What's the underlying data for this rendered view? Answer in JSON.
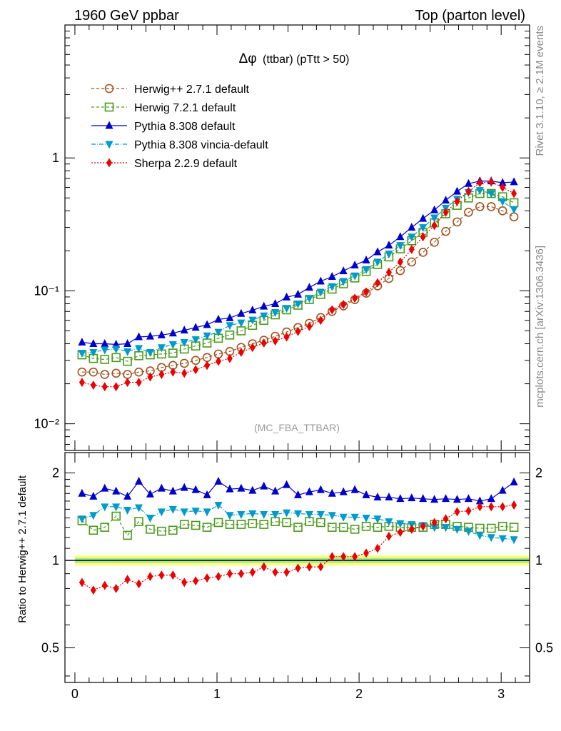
{
  "header": {
    "left": "1960 GeV ppbar",
    "right": "Top (parton level)"
  },
  "side_labels": {
    "top": "Rivet 3.1.10, ≥ 2.1M events",
    "bottom": "mcplots.cern.ch [arXiv:1306.3436]"
  },
  "analysis_tag": "(MC_FBA_TTBAR)",
  "chart_data": [
    {
      "type": "line",
      "panel": "main",
      "title_symbol": "Δφ",
      "title": "(ttbar) (pTtt > 50)",
      "xlabel": "",
      "ylabel": "",
      "yscale": "log",
      "xlim": [
        -0.07,
        3.2
      ],
      "ylim": [
        0.0063,
        10
      ],
      "y_tick_labels": [
        "10⁻²",
        "10⁻¹",
        "1"
      ],
      "x": [
        0.05,
        0.13,
        0.21,
        0.29,
        0.37,
        0.45,
        0.53,
        0.61,
        0.69,
        0.77,
        0.85,
        0.93,
        1.01,
        1.09,
        1.17,
        1.25,
        1.33,
        1.41,
        1.49,
        1.57,
        1.65,
        1.73,
        1.81,
        1.89,
        1.97,
        2.05,
        2.13,
        2.21,
        2.29,
        2.37,
        2.45,
        2.53,
        2.61,
        2.69,
        2.77,
        2.85,
        2.93,
        3.01,
        3.09
      ],
      "legend_position": "top-left",
      "series": [
        {
          "name": "Herwig++ 2.7.1 default",
          "color": "#a0521d",
          "marker": "open-circle",
          "dash": "4,3",
          "values": [
            0.0245,
            0.0245,
            0.0235,
            0.024,
            0.0235,
            0.0245,
            0.025,
            0.0265,
            0.0275,
            0.0285,
            0.03,
            0.0315,
            0.0335,
            0.035,
            0.0375,
            0.04,
            0.0425,
            0.0455,
            0.049,
            0.053,
            0.057,
            0.063,
            0.07,
            0.077,
            0.086,
            0.096,
            0.109,
            0.124,
            0.142,
            0.165,
            0.195,
            0.232,
            0.28,
            0.33,
            0.39,
            0.43,
            0.43,
            0.4,
            0.36
          ]
        },
        {
          "name": "Herwig 7.2.1 default",
          "color": "#4a9a1a",
          "marker": "open-square",
          "dash": "4,3",
          "values": [
            0.033,
            0.031,
            0.0305,
            0.0315,
            0.0295,
            0.0325,
            0.033,
            0.0335,
            0.034,
            0.0365,
            0.0385,
            0.0405,
            0.044,
            0.0465,
            0.05,
            0.055,
            0.06,
            0.066,
            0.072,
            0.078,
            0.086,
            0.094,
            0.103,
            0.113,
            0.125,
            0.14,
            0.158,
            0.18,
            0.207,
            0.238,
            0.275,
            0.325,
            0.38,
            0.44,
            0.5,
            0.54,
            0.54,
            0.51,
            0.46
          ]
        },
        {
          "name": "Pythia 8.308 default",
          "color": "#0000cc",
          "marker": "filled-triangle-up",
          "dash": "",
          "values": [
            0.041,
            0.04,
            0.04,
            0.0395,
            0.04,
            0.045,
            0.0455,
            0.0465,
            0.048,
            0.0505,
            0.053,
            0.0555,
            0.061,
            0.0625,
            0.0675,
            0.0715,
            0.0765,
            0.08,
            0.0895,
            0.094,
            0.106,
            0.118,
            0.128,
            0.141,
            0.156,
            0.17,
            0.196,
            0.22,
            0.255,
            0.3,
            0.35,
            0.405,
            0.48,
            0.56,
            0.64,
            0.67,
            0.67,
            0.65,
            0.66
          ]
        },
        {
          "name": "Pythia 8.308 vincia-default",
          "color": "#009acc",
          "marker": "filled-triangle-down",
          "dash": "6,2,1,2",
          "values": [
            0.034,
            0.0345,
            0.036,
            0.0365,
            0.035,
            0.037,
            0.0345,
            0.0375,
            0.0395,
            0.041,
            0.043,
            0.046,
            0.049,
            0.055,
            0.0575,
            0.0605,
            0.065,
            0.069,
            0.074,
            0.08,
            0.088,
            0.098,
            0.108,
            0.118,
            0.13,
            0.145,
            0.165,
            0.19,
            0.22,
            0.255,
            0.3,
            0.355,
            0.42,
            0.49,
            0.55,
            0.57,
            0.54,
            0.47,
            0.41
          ]
        },
        {
          "name": "Sherpa 2.2.9 default",
          "color": "#ee0000",
          "marker": "filled-diamond",
          "dash": "2,2",
          "values": [
            0.0205,
            0.0195,
            0.019,
            0.019,
            0.0205,
            0.0205,
            0.0225,
            0.0235,
            0.0245,
            0.024,
            0.0255,
            0.0275,
            0.0295,
            0.031,
            0.0345,
            0.0375,
            0.0405,
            0.042,
            0.045,
            0.0495,
            0.054,
            0.06,
            0.072,
            0.079,
            0.088,
            0.098,
            0.115,
            0.138,
            0.165,
            0.205,
            0.255,
            0.31,
            0.39,
            0.47,
            0.56,
            0.65,
            0.66,
            0.6,
            0.54
          ]
        }
      ]
    },
    {
      "type": "line",
      "panel": "ratio",
      "ylabel": "Ratio to Herwig++ 2.7.1 default",
      "xlabel": "",
      "xlim": [
        -0.07,
        3.2
      ],
      "ylim": [
        0.38,
        2.35
      ],
      "yscale": "log",
      "x_tick_labels": [
        "0",
        "1",
        "2",
        "3"
      ],
      "y_tick_labels": [
        "0.5",
        "1",
        "2"
      ],
      "reference_band": {
        "low": 0.96,
        "high": 1.04
      },
      "x": [
        0.05,
        0.13,
        0.21,
        0.29,
        0.37,
        0.45,
        0.53,
        0.61,
        0.69,
        0.77,
        0.85,
        0.93,
        1.01,
        1.09,
        1.17,
        1.25,
        1.33,
        1.41,
        1.49,
        1.57,
        1.65,
        1.73,
        1.81,
        1.89,
        1.97,
        2.05,
        2.13,
        2.21,
        2.29,
        2.37,
        2.45,
        2.53,
        2.61,
        2.69,
        2.77,
        2.85,
        2.93,
        3.01,
        3.09
      ],
      "series": [
        {
          "name": "Herwig 7.2.1 default",
          "color": "#4a9a1a",
          "marker": "open-square",
          "dash": "4,3",
          "values": [
            1.37,
            1.27,
            1.3,
            1.42,
            1.22,
            1.36,
            1.28,
            1.26,
            1.27,
            1.33,
            1.32,
            1.3,
            1.35,
            1.33,
            1.33,
            1.34,
            1.33,
            1.36,
            1.35,
            1.3,
            1.36,
            1.35,
            1.3,
            1.3,
            1.28,
            1.31,
            1.3,
            1.31,
            1.3,
            1.3,
            1.3,
            1.33,
            1.33,
            1.31,
            1.3,
            1.29,
            1.29,
            1.31,
            1.3
          ]
        },
        {
          "name": "Pythia 8.308 default",
          "color": "#0000cc",
          "marker": "filled-triangle-up",
          "dash": "",
          "values": [
            1.7,
            1.66,
            1.77,
            1.73,
            1.66,
            1.87,
            1.69,
            1.77,
            1.73,
            1.78,
            1.75,
            1.68,
            1.87,
            1.76,
            1.77,
            1.74,
            1.8,
            1.73,
            1.82,
            1.68,
            1.72,
            1.75,
            1.7,
            1.72,
            1.75,
            1.68,
            1.65,
            1.65,
            1.63,
            1.64,
            1.63,
            1.62,
            1.63,
            1.62,
            1.63,
            1.6,
            1.63,
            1.74,
            1.86
          ]
        },
        {
          "name": "Pythia 8.308 vincia-default",
          "color": "#009acc",
          "marker": "filled-triangle-down",
          "dash": "6,2,1,2",
          "values": [
            1.39,
            1.43,
            1.53,
            1.53,
            1.49,
            1.52,
            1.4,
            1.47,
            1.5,
            1.47,
            1.48,
            1.47,
            1.55,
            1.43,
            1.44,
            1.45,
            1.44,
            1.44,
            1.46,
            1.45,
            1.44,
            1.44,
            1.43,
            1.41,
            1.41,
            1.4,
            1.39,
            1.36,
            1.34,
            1.33,
            1.32,
            1.3,
            1.3,
            1.28,
            1.26,
            1.22,
            1.2,
            1.19,
            1.18
          ]
        },
        {
          "name": "Sherpa 2.2.9 default",
          "color": "#ee0000",
          "marker": "filled-diamond",
          "dash": "2,2",
          "values": [
            0.84,
            0.79,
            0.82,
            0.8,
            0.86,
            0.83,
            0.88,
            0.89,
            0.89,
            0.84,
            0.85,
            0.87,
            0.88,
            0.9,
            0.9,
            0.91,
            0.95,
            0.91,
            0.91,
            0.94,
            0.95,
            0.95,
            1.03,
            1.03,
            1.03,
            1.06,
            1.1,
            1.21,
            1.25,
            1.28,
            1.31,
            1.35,
            1.39,
            1.47,
            1.48,
            1.53,
            1.53,
            1.53,
            1.55
          ]
        }
      ]
    }
  ]
}
